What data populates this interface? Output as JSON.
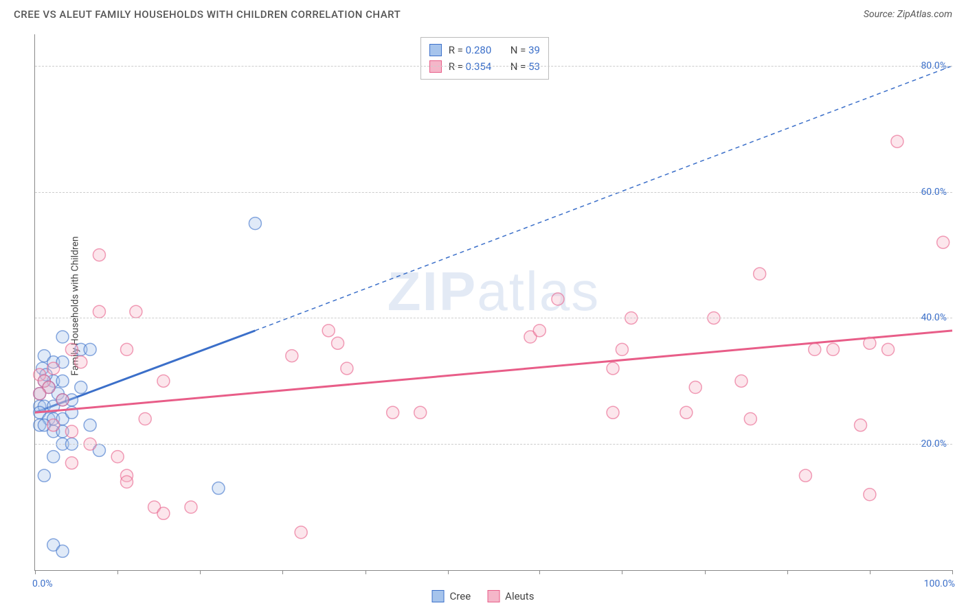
{
  "title": "CREE VS ALEUT FAMILY HOUSEHOLDS WITH CHILDREN CORRELATION CHART",
  "source": "Source: ZipAtlas.com",
  "ylabel": "Family Households with Children",
  "watermark": {
    "bold": "ZIP",
    "rest": "atlas"
  },
  "chart": {
    "type": "scatter",
    "background_color": "#ffffff",
    "grid_color": "#cccccc",
    "axis_color": "#888888",
    "xlim": [
      0,
      100
    ],
    "ylim": [
      0,
      85
    ],
    "xticks": [
      0,
      9,
      18,
      27,
      36,
      45,
      55,
      64,
      73,
      82,
      91,
      100
    ],
    "xaxis_labels": [
      {
        "value": 0,
        "text": "0.0%"
      },
      {
        "value": 100,
        "text": "100.0%"
      }
    ],
    "yticks": [
      20,
      40,
      60,
      80
    ],
    "ytick_labels": [
      "20.0%",
      "40.0%",
      "60.0%",
      "80.0%"
    ],
    "marker_radius": 9,
    "marker_fill_opacity": 0.35,
    "marker_stroke_width": 1.5,
    "series": [
      {
        "name": "Cree",
        "color_stroke": "#3b6fc9",
        "color_fill": "#a6c4ec",
        "stats": {
          "R": "0.280",
          "N": "39"
        },
        "trend": {
          "solid": {
            "x1": 0,
            "y1": 25,
            "x2": 24,
            "y2": 38
          },
          "dashed_continue": {
            "x1": 24,
            "y1": 38,
            "x2": 100,
            "y2": 80
          },
          "solid_width": 3,
          "dash_pattern": "6,5"
        },
        "points": [
          [
            24,
            55
          ],
          [
            3,
            37
          ],
          [
            5,
            35
          ],
          [
            6,
            35
          ],
          [
            1,
            34
          ],
          [
            2,
            33
          ],
          [
            3,
            33
          ],
          [
            1,
            30
          ],
          [
            2,
            30
          ],
          [
            3,
            30
          ],
          [
            1.5,
            29
          ],
          [
            0.5,
            28
          ],
          [
            2.5,
            28
          ],
          [
            0.5,
            26
          ],
          [
            1,
            26
          ],
          [
            2,
            26
          ],
          [
            3,
            27
          ],
          [
            4,
            27
          ],
          [
            0.5,
            25
          ],
          [
            1.5,
            24
          ],
          [
            2,
            24
          ],
          [
            3,
            24
          ],
          [
            4,
            25
          ],
          [
            0.5,
            23
          ],
          [
            1,
            23
          ],
          [
            2,
            22
          ],
          [
            3,
            22
          ],
          [
            6,
            23
          ],
          [
            7,
            19
          ],
          [
            2,
            18
          ],
          [
            3,
            20
          ],
          [
            4,
            20
          ],
          [
            1,
            15
          ],
          [
            20,
            13
          ],
          [
            2,
            4
          ],
          [
            3,
            3
          ],
          [
            0.8,
            32
          ],
          [
            1.2,
            31
          ],
          [
            5,
            29
          ]
        ]
      },
      {
        "name": "Aleuts",
        "color_stroke": "#e85d88",
        "color_fill": "#f5b6c9",
        "stats": {
          "R": "0.354",
          "N": "53"
        },
        "trend": {
          "solid": {
            "x1": 0,
            "y1": 25,
            "x2": 100,
            "y2": 38
          },
          "solid_width": 3
        },
        "points": [
          [
            94,
            68
          ],
          [
            99,
            52
          ],
          [
            79,
            47
          ],
          [
            91,
            36
          ],
          [
            93,
            35
          ],
          [
            87,
            35
          ],
          [
            85,
            35
          ],
          [
            74,
            40
          ],
          [
            57,
            43
          ],
          [
            65,
            40
          ],
          [
            54,
            37
          ],
          [
            55,
            38
          ],
          [
            77,
            30
          ],
          [
            72,
            29
          ],
          [
            71,
            25
          ],
          [
            63,
            25
          ],
          [
            78,
            24
          ],
          [
            63,
            32
          ],
          [
            64,
            35
          ],
          [
            90,
            23
          ],
          [
            84,
            15
          ],
          [
            91,
            12
          ],
          [
            32,
            38
          ],
          [
            33,
            36
          ],
          [
            34,
            32
          ],
          [
            39,
            25
          ],
          [
            42,
            25
          ],
          [
            28,
            34
          ],
          [
            29,
            6
          ],
          [
            14,
            30
          ],
          [
            7,
            50
          ],
          [
            7,
            41
          ],
          [
            11,
            41
          ],
          [
            10,
            35
          ],
          [
            12,
            24
          ],
          [
            4,
            35
          ],
          [
            5,
            33
          ],
          [
            2,
            32
          ],
          [
            0.5,
            31
          ],
          [
            1,
            30
          ],
          [
            1.5,
            29
          ],
          [
            0.5,
            28
          ],
          [
            3,
            27
          ],
          [
            2,
            23
          ],
          [
            4,
            22
          ],
          [
            6,
            20
          ],
          [
            9,
            18
          ],
          [
            10,
            15
          ],
          [
            10,
            14
          ],
          [
            13,
            10
          ],
          [
            14,
            9
          ],
          [
            4,
            17
          ],
          [
            17,
            10
          ]
        ]
      }
    ]
  },
  "stats_labels": {
    "R": "R =",
    "N": "N ="
  },
  "legend": [
    {
      "label": "Cree",
      "stroke": "#3b6fc9",
      "fill": "#a6c4ec"
    },
    {
      "label": "Aleuts",
      "stroke": "#e85d88",
      "fill": "#f5b6c9"
    }
  ]
}
